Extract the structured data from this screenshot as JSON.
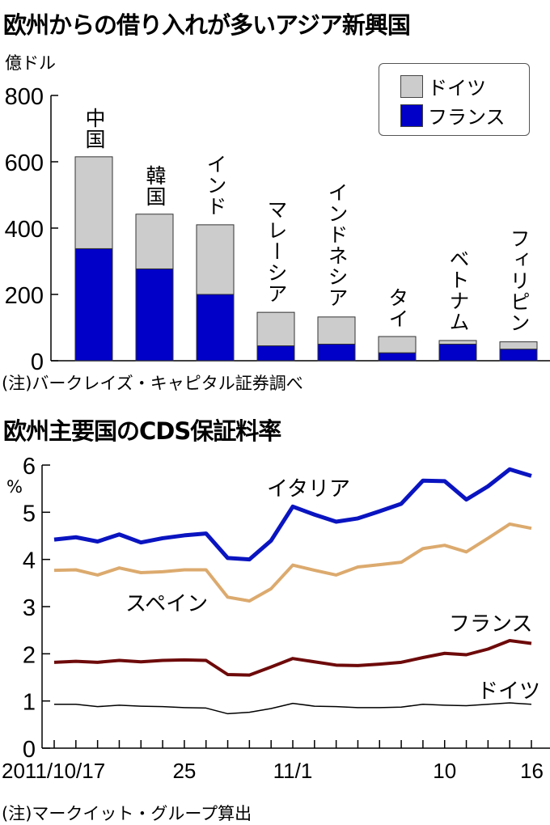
{
  "chart_data": [
    {
      "type": "bar",
      "stacked": true,
      "title": "欧州からの借り入れが多いアジア新興国",
      "ylabel": "億ドル",
      "ylim": [
        0,
        800
      ],
      "yticks": [
        "0",
        "200",
        "400",
        "600",
        "800"
      ],
      "categories": [
        "中国",
        "韓国",
        "インド",
        "マレーシア",
        "インドネシア",
        "タイ",
        "ベトナム",
        "フィリピン"
      ],
      "series": [
        {
          "name": "フランス",
          "color": "#0000c8",
          "values": [
            338,
            277,
            200,
            45,
            50,
            24,
            50,
            35
          ]
        },
        {
          "name": "ドイツ",
          "color": "#cccccc",
          "values": [
            277,
            165,
            210,
            101,
            82,
            49,
            11,
            22
          ]
        }
      ],
      "totals": [
        615,
        442,
        410,
        146,
        132,
        73,
        61,
        57
      ],
      "legend": [
        "ドイツ",
        "フランス"
      ],
      "legend_position": "top-right",
      "note": "(注)バークレイズ・キャピタル証券調べ"
    },
    {
      "type": "line",
      "title": "欧州主要国のCDS保証料率",
      "ylabel": "%",
      "ylim": [
        0,
        6
      ],
      "yticks": [
        "0",
        "1",
        "2",
        "3",
        "4",
        "5",
        "6"
      ],
      "x": [
        "10/17",
        "10/18",
        "10/19",
        "10/20",
        "10/21",
        "10/24",
        "10/25",
        "10/26",
        "10/27",
        "10/28",
        "10/31",
        "11/1",
        "11/2",
        "11/3",
        "11/4",
        "11/7",
        "11/8",
        "11/9",
        "11/10",
        "11/11",
        "11/14",
        "11/15",
        "11/16"
      ],
      "xtick_labels": [
        {
          "index": 0,
          "label": "2011/10/17"
        },
        {
          "index": 6,
          "label": "25"
        },
        {
          "index": 11,
          "label": "11/1"
        },
        {
          "index": 18,
          "label": "10"
        },
        {
          "index": 22,
          "label": "16"
        }
      ],
      "series": [
        {
          "name": "イタリア",
          "color": "#0a14c0",
          "width": 5,
          "values": [
            4.42,
            4.47,
            4.38,
            4.53,
            4.36,
            4.45,
            4.51,
            4.55,
            4.03,
            4.0,
            4.4,
            5.12,
            4.95,
            4.8,
            4.87,
            5.02,
            5.18,
            5.67,
            5.66,
            5.27,
            5.55,
            5.91,
            5.77
          ]
        },
        {
          "name": "スペイン",
          "color": "#dcaa6e",
          "width": 4,
          "values": [
            3.77,
            3.78,
            3.67,
            3.82,
            3.72,
            3.74,
            3.78,
            3.78,
            3.2,
            3.12,
            3.38,
            3.88,
            3.77,
            3.67,
            3.84,
            3.89,
            3.94,
            4.23,
            4.3,
            4.16,
            4.45,
            4.75,
            4.66
          ]
        },
        {
          "name": "フランス",
          "color": "#6e0a0a",
          "width": 4,
          "values": [
            1.82,
            1.84,
            1.82,
            1.86,
            1.83,
            1.86,
            1.87,
            1.86,
            1.56,
            1.55,
            1.72,
            1.9,
            1.83,
            1.76,
            1.75,
            1.78,
            1.82,
            1.92,
            2.01,
            1.98,
            2.1,
            2.28,
            2.22
          ]
        },
        {
          "name": "ドイツ",
          "color": "#000000",
          "width": 1.5,
          "values": [
            0.93,
            0.93,
            0.88,
            0.91,
            0.89,
            0.88,
            0.86,
            0.85,
            0.73,
            0.76,
            0.84,
            0.95,
            0.89,
            0.88,
            0.86,
            0.86,
            0.87,
            0.93,
            0.91,
            0.9,
            0.93,
            0.96,
            0.93
          ]
        }
      ],
      "note": "(注)マークイット・グループ算出"
    }
  ]
}
